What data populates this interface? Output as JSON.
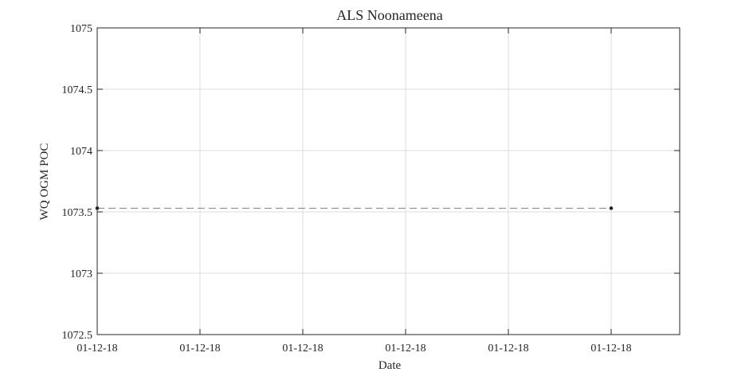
{
  "chart_data": {
    "type": "line",
    "title": "ALS Noonameena",
    "xlabel": "Date",
    "ylabel": "WQ OGM POC",
    "ylim": [
      1072.5,
      1075
    ],
    "y_ticks": [
      1072.5,
      1073,
      1073.5,
      1074,
      1074.5,
      1075
    ],
    "y_tick_labels": [
      "1072.5",
      "1073",
      "1073.5",
      "1074",
      "1074.5",
      "1075"
    ],
    "x_tick_labels": [
      "01-12-18",
      "01-12-18",
      "01-12-18",
      "01-12-18",
      "01-12-18",
      "01-12-18"
    ],
    "grid": true,
    "series": [
      {
        "line_style": "dashed",
        "line_color": "#808080",
        "marker_color": "#262626",
        "points": [
          {
            "x": "01-12-18",
            "y": 1073.53
          },
          {
            "x": "01-12-18",
            "y": 1073.53
          }
        ]
      }
    ]
  }
}
